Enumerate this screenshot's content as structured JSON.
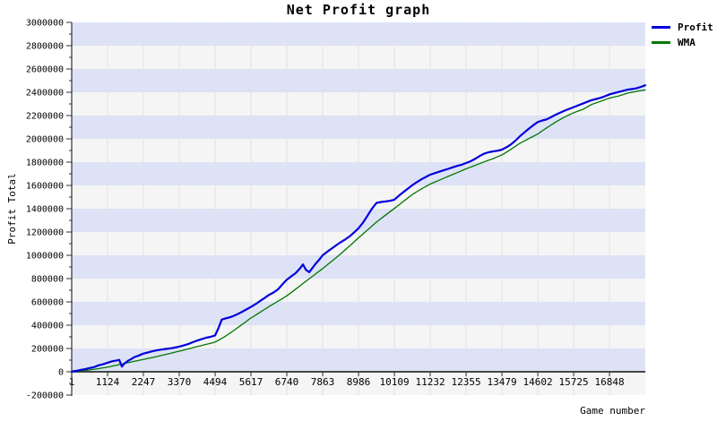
{
  "chart_data": {
    "type": "line",
    "title": "Net Profit graph",
    "xlabel": "Game number",
    "ylabel": "Profit Total",
    "xlim": [
      1,
      17969
    ],
    "ylim": [
      -200000,
      3000000
    ],
    "x_ticks": [
      1,
      1124,
      2247,
      3370,
      4494,
      5617,
      6740,
      7863,
      8986,
      10109,
      11232,
      12355,
      13479,
      14602,
      15725,
      16848
    ],
    "y_ticks": [
      -200000,
      0,
      200000,
      400000,
      600000,
      800000,
      1000000,
      1200000,
      1400000,
      1600000,
      1800000,
      2000000,
      2200000,
      2400000,
      2600000,
      2800000,
      3000000
    ],
    "y_minor_step": 100000,
    "y_band_step": 200000,
    "grid": true,
    "legend_position": "top-right",
    "colors": {
      "band_a": "#dde2f6",
      "band_b": "#f5f5f5",
      "gridline": "#e2e2e6",
      "axis": "#2f2f2f",
      "text": "#000000"
    },
    "series": [
      {
        "name": "Profit",
        "color": "#0000dd",
        "width": 2.2,
        "jitter": 6500,
        "points": [
          [
            1,
            0
          ],
          [
            150,
            8000
          ],
          [
            281,
            16000
          ],
          [
            420,
            22000
          ],
          [
            562,
            32000
          ],
          [
            700,
            40000
          ],
          [
            843,
            55000
          ],
          [
            983,
            65000
          ],
          [
            1124,
            78000
          ],
          [
            1265,
            90000
          ],
          [
            1405,
            97000
          ],
          [
            1489,
            102000
          ],
          [
            1573,
            45000
          ],
          [
            1658,
            72000
          ],
          [
            1770,
            95000
          ],
          [
            1870,
            110000
          ],
          [
            1967,
            126000
          ],
          [
            2107,
            140000
          ],
          [
            2247,
            156000
          ],
          [
            2388,
            166000
          ],
          [
            2528,
            176000
          ],
          [
            2668,
            184000
          ],
          [
            2809,
            191000
          ],
          [
            2950,
            196000
          ],
          [
            3090,
            201000
          ],
          [
            3230,
            208000
          ],
          [
            3370,
            216000
          ],
          [
            3511,
            226000
          ],
          [
            3651,
            238000
          ],
          [
            3792,
            254000
          ],
          [
            3932,
            268000
          ],
          [
            4073,
            280000
          ],
          [
            4213,
            292000
          ],
          [
            4353,
            300000
          ],
          [
            4494,
            312000
          ],
          [
            4590,
            370000
          ],
          [
            4700,
            448000
          ],
          [
            4810,
            458000
          ],
          [
            4920,
            465000
          ],
          [
            5056,
            478000
          ],
          [
            5196,
            495000
          ],
          [
            5336,
            515000
          ],
          [
            5477,
            535000
          ],
          [
            5617,
            557000
          ],
          [
            5757,
            580000
          ],
          [
            5898,
            607000
          ],
          [
            6038,
            632000
          ],
          [
            6179,
            660000
          ],
          [
            6319,
            680000
          ],
          [
            6460,
            707000
          ],
          [
            6600,
            750000
          ],
          [
            6740,
            790000
          ],
          [
            6881,
            820000
          ],
          [
            7021,
            848000
          ],
          [
            7161,
            890000
          ],
          [
            7245,
            922000
          ],
          [
            7340,
            875000
          ],
          [
            7442,
            855000
          ],
          [
            7540,
            890000
          ],
          [
            7650,
            930000
          ],
          [
            7760,
            965000
          ],
          [
            7863,
            1000000
          ],
          [
            8003,
            1030000
          ],
          [
            8144,
            1058000
          ],
          [
            8284,
            1085000
          ],
          [
            8425,
            1112000
          ],
          [
            8565,
            1135000
          ],
          [
            8705,
            1162000
          ],
          [
            8846,
            1195000
          ],
          [
            8986,
            1232000
          ],
          [
            9126,
            1280000
          ],
          [
            9267,
            1340000
          ],
          [
            9407,
            1400000
          ],
          [
            9548,
            1450000
          ],
          [
            9689,
            1458000
          ],
          [
            9829,
            1462000
          ],
          [
            9969,
            1468000
          ],
          [
            10109,
            1478000
          ],
          [
            10250,
            1512000
          ],
          [
            10390,
            1542000
          ],
          [
            10530,
            1572000
          ],
          [
            10671,
            1602000
          ],
          [
            10811,
            1628000
          ],
          [
            10952,
            1652000
          ],
          [
            11092,
            1672000
          ],
          [
            11232,
            1692000
          ],
          [
            11373,
            1705000
          ],
          [
            11513,
            1718000
          ],
          [
            11653,
            1730000
          ],
          [
            11794,
            1742000
          ],
          [
            11934,
            1755000
          ],
          [
            12075,
            1768000
          ],
          [
            12215,
            1778000
          ],
          [
            12355,
            1792000
          ],
          [
            12496,
            1808000
          ],
          [
            12636,
            1828000
          ],
          [
            12777,
            1852000
          ],
          [
            12917,
            1872000
          ],
          [
            13057,
            1885000
          ],
          [
            13198,
            1892000
          ],
          [
            13338,
            1898000
          ],
          [
            13479,
            1908000
          ],
          [
            13619,
            1928000
          ],
          [
            13760,
            1952000
          ],
          [
            13900,
            1985000
          ],
          [
            14041,
            2022000
          ],
          [
            14181,
            2055000
          ],
          [
            14321,
            2088000
          ],
          [
            14462,
            2118000
          ],
          [
            14602,
            2145000
          ],
          [
            14742,
            2158000
          ],
          [
            14883,
            2168000
          ],
          [
            15023,
            2188000
          ],
          [
            15164,
            2208000
          ],
          [
            15304,
            2225000
          ],
          [
            15444,
            2242000
          ],
          [
            15585,
            2258000
          ],
          [
            15725,
            2272000
          ],
          [
            15865,
            2288000
          ],
          [
            16006,
            2302000
          ],
          [
            16146,
            2318000
          ],
          [
            16287,
            2332000
          ],
          [
            16427,
            2342000
          ],
          [
            16567,
            2352000
          ],
          [
            16708,
            2366000
          ],
          [
            16848,
            2382000
          ],
          [
            16988,
            2392000
          ],
          [
            17129,
            2402000
          ],
          [
            17269,
            2412000
          ],
          [
            17410,
            2422000
          ],
          [
            17550,
            2428000
          ],
          [
            17690,
            2434000
          ],
          [
            17830,
            2446000
          ],
          [
            17969,
            2460000
          ]
        ]
      },
      {
        "name": "WMA",
        "color": "#007700",
        "width": 1.3,
        "jitter": 0,
        "points": [
          [
            1,
            0
          ],
          [
            281,
            8000
          ],
          [
            562,
            16000
          ],
          [
            843,
            27000
          ],
          [
            1124,
            40000
          ],
          [
            1405,
            56000
          ],
          [
            1686,
            74000
          ],
          [
            1967,
            90000
          ],
          [
            2247,
            106000
          ],
          [
            2528,
            122000
          ],
          [
            2809,
            140000
          ],
          [
            3090,
            158000
          ],
          [
            3370,
            177000
          ],
          [
            3651,
            196000
          ],
          [
            3932,
            216000
          ],
          [
            4213,
            235000
          ],
          [
            4494,
            255000
          ],
          [
            4775,
            298000
          ],
          [
            5056,
            350000
          ],
          [
            5336,
            405000
          ],
          [
            5617,
            462000
          ],
          [
            5898,
            510000
          ],
          [
            6179,
            560000
          ],
          [
            6460,
            605000
          ],
          [
            6740,
            652000
          ],
          [
            7021,
            710000
          ],
          [
            7302,
            770000
          ],
          [
            7583,
            828000
          ],
          [
            7863,
            886000
          ],
          [
            8144,
            948000
          ],
          [
            8425,
            1012000
          ],
          [
            8705,
            1080000
          ],
          [
            8986,
            1150000
          ],
          [
            9267,
            1218000
          ],
          [
            9548,
            1285000
          ],
          [
            9829,
            1345000
          ],
          [
            10109,
            1402000
          ],
          [
            10390,
            1462000
          ],
          [
            10671,
            1522000
          ],
          [
            10952,
            1570000
          ],
          [
            11232,
            1612000
          ],
          [
            11513,
            1645000
          ],
          [
            11794,
            1678000
          ],
          [
            12075,
            1710000
          ],
          [
            12355,
            1742000
          ],
          [
            12636,
            1772000
          ],
          [
            12917,
            1802000
          ],
          [
            13198,
            1830000
          ],
          [
            13479,
            1862000
          ],
          [
            13760,
            1910000
          ],
          [
            14041,
            1962000
          ],
          [
            14321,
            2002000
          ],
          [
            14602,
            2042000
          ],
          [
            14883,
            2095000
          ],
          [
            15164,
            2145000
          ],
          [
            15444,
            2188000
          ],
          [
            15725,
            2225000
          ],
          [
            16006,
            2252000
          ],
          [
            16287,
            2295000
          ],
          [
            16567,
            2322000
          ],
          [
            16848,
            2350000
          ],
          [
            17129,
            2368000
          ],
          [
            17410,
            2392000
          ],
          [
            17690,
            2408000
          ],
          [
            17969,
            2420000
          ]
        ]
      }
    ]
  }
}
